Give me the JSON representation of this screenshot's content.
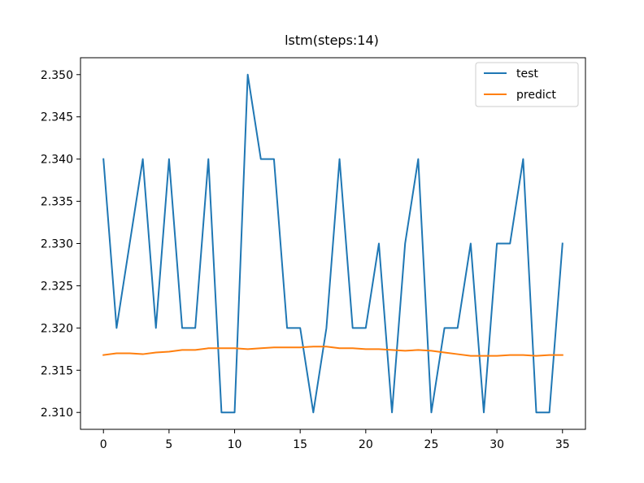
{
  "chart_data": {
    "type": "line",
    "title": "lstm(steps:14)",
    "xlabel": "",
    "ylabel": "",
    "x": [
      0,
      1,
      2,
      3,
      4,
      5,
      6,
      7,
      8,
      9,
      10,
      11,
      12,
      13,
      14,
      15,
      16,
      17,
      18,
      19,
      20,
      21,
      22,
      23,
      24,
      25,
      26,
      27,
      28,
      29,
      30,
      31,
      32,
      33,
      34,
      35
    ],
    "series": [
      {
        "name": "test",
        "color": "#1f77b4",
        "values": [
          2.34,
          2.32,
          2.33,
          2.34,
          2.32,
          2.34,
          2.32,
          2.32,
          2.34,
          2.31,
          2.31,
          2.35,
          2.34,
          2.34,
          2.32,
          2.32,
          2.31,
          2.32,
          2.34,
          2.32,
          2.32,
          2.33,
          2.31,
          2.33,
          2.34,
          2.31,
          2.32,
          2.32,
          2.33,
          2.31,
          2.33,
          2.33,
          2.34,
          2.31,
          2.31,
          2.33
        ]
      },
      {
        "name": "predict",
        "color": "#ff7f0e",
        "values": [
          2.3168,
          2.317,
          2.317,
          2.3169,
          2.3171,
          2.3172,
          2.3174,
          2.3174,
          2.3176,
          2.3176,
          2.3176,
          2.3175,
          2.3176,
          2.3177,
          2.3177,
          2.3177,
          2.3178,
          2.3178,
          2.3176,
          2.3176,
          2.3175,
          2.3175,
          2.3174,
          2.3173,
          2.3174,
          2.3173,
          2.3171,
          2.3169,
          2.3167,
          2.3167,
          2.3167,
          2.3168,
          2.3168,
          2.3167,
          2.3168,
          2.3168
        ]
      }
    ],
    "xticks": [
      0,
      5,
      10,
      15,
      20,
      25,
      30,
      35
    ],
    "xtick_labels": [
      "0",
      "5",
      "10",
      "15",
      "20",
      "25",
      "30",
      "35"
    ],
    "yticks": [
      2.31,
      2.315,
      2.32,
      2.325,
      2.33,
      2.335,
      2.34,
      2.345,
      2.35
    ],
    "ytick_labels": [
      "2.310",
      "2.315",
      "2.320",
      "2.325",
      "2.330",
      "2.335",
      "2.340",
      "2.345",
      "2.350"
    ],
    "xlim": [
      -1.75,
      36.75
    ],
    "ylim": [
      2.308,
      2.352
    ],
    "grid": false,
    "legend_position": "top-right"
  }
}
